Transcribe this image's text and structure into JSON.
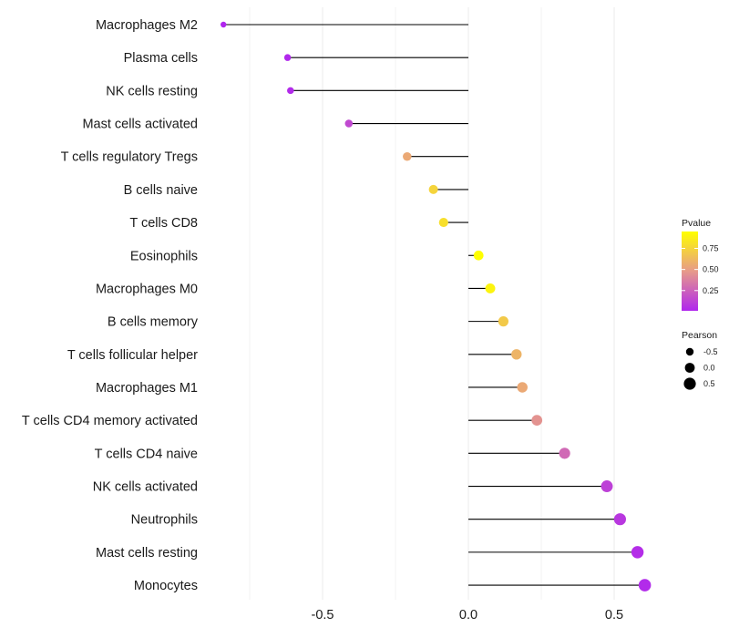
{
  "chart_data": {
    "type": "lollipop",
    "categories": [
      "Macrophages M2",
      "Plasma cells",
      "NK cells resting",
      "Mast cells activated",
      "T cells regulatory  Tregs",
      "B cells naive",
      "T cells CD8",
      "Eosinophils",
      "Macrophages M0",
      "B cells memory",
      "T cells follicular helper",
      "Macrophages M1",
      "T cells CD4 memory activated",
      "T cells CD4 naive",
      "NK cells activated",
      "Neutrophils",
      "Mast cells resting",
      "Monocytes"
    ],
    "values": [
      -0.84,
      -0.62,
      -0.61,
      -0.41,
      -0.21,
      -0.12,
      -0.085,
      0.035,
      0.075,
      0.12,
      0.165,
      0.185,
      0.235,
      0.33,
      0.475,
      0.52,
      0.58,
      0.605
    ],
    "pvalues": [
      0.01,
      0.02,
      0.03,
      0.15,
      0.55,
      0.75,
      0.8,
      0.95,
      0.9,
      0.7,
      0.6,
      0.55,
      0.45,
      0.28,
      0.12,
      0.08,
      0.04,
      0.03
    ],
    "xlim": [
      -0.9,
      0.7
    ],
    "xticks": [
      -0.5,
      0.0,
      0.5
    ],
    "xtick_labels": [
      "-0.5",
      "0.0",
      "0.5"
    ],
    "grid": true,
    "colorbar": {
      "title": "Pvalue",
      "ticks": [
        0.25,
        0.5,
        0.75
      ],
      "tick_labels": [
        "0.25",
        "0.50",
        "0.75"
      ],
      "range": [
        0.01,
        0.95
      ],
      "low_color": "#b026ee",
      "mid_color": "#e79a8a",
      "high_color": "#ffff00"
    },
    "size_legend": {
      "title": "Pearson",
      "values": [
        -0.5,
        0.0,
        0.5
      ],
      "labels": [
        "-0.5",
        "0.0",
        "0.5"
      ]
    },
    "stem_color": "#000000",
    "grid_color": "#ebebeb"
  }
}
